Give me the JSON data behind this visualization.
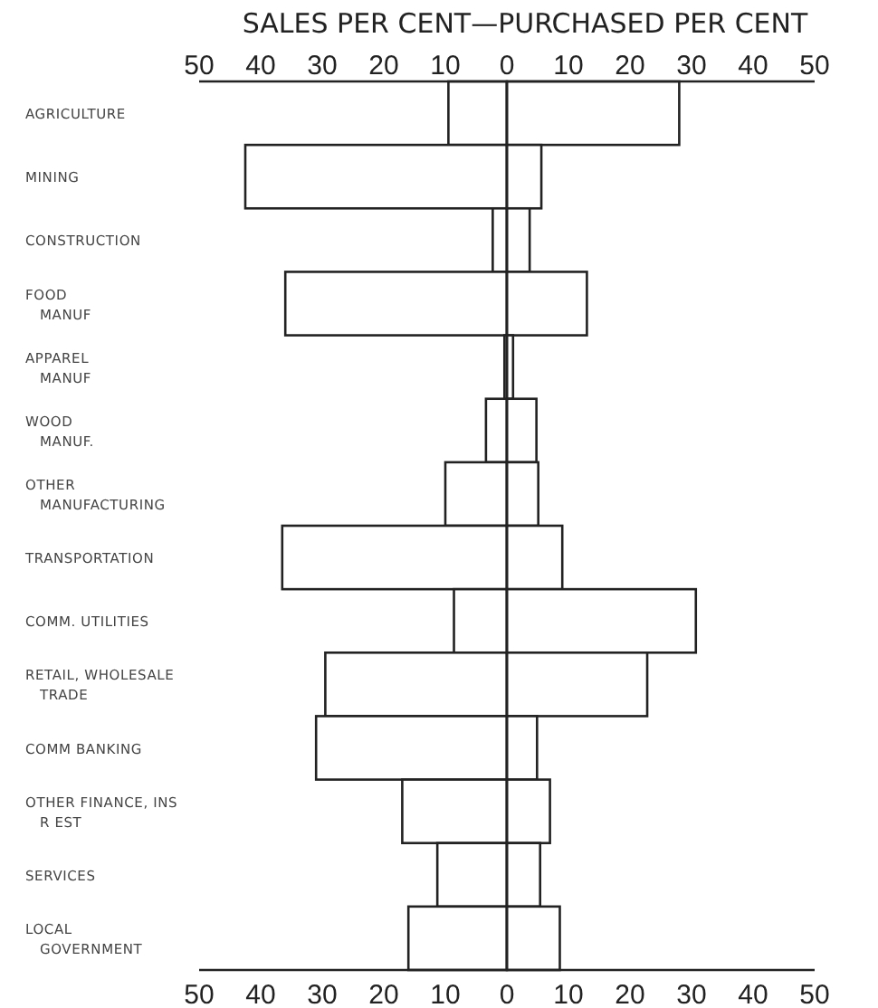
{
  "chart_data": {
    "type": "bar",
    "orientation": "horizontal",
    "stacked": true,
    "xlabel": "SALES PER CENT—PURCHASED PER CENT",
    "categories": [
      "AGRICULTURE",
      "MINING",
      "CONSTRUCTION",
      "FOOD\nMANUF",
      "APPAREL\nMANUF",
      "WOOD\nMANUF.",
      "OTHER\nMANUFACTURING",
      "TRANSPORTATION",
      "COMM. UTILITIES",
      "RETAIL, WHOLESALE\nTRADE",
      "COMM BANKING",
      "OTHER FINANCE, INS\nR EST",
      "SERVICES",
      "LOCAL\nGOVERNMENT"
    ],
    "series": [
      {
        "color": "#ffffff",
        "values": [
          -9.5,
          -42.5,
          -2.3,
          -36,
          -0.4,
          -3.4,
          -10,
          -36.5,
          -8.6,
          -29.5,
          -31,
          -17,
          -11.3,
          -16
        ]
      },
      {
        "color": "#ffffff",
        "values": [
          28,
          5.6,
          3.7,
          13,
          1,
          4.8,
          5.1,
          9,
          30.7,
          22.8,
          4.9,
          7,
          5.4,
          8.6
        ]
      }
    ],
    "xlim": [
      -50,
      50
    ],
    "xticks": [
      {
        "value": -50,
        "label": "50"
      },
      {
        "value": -40,
        "label": "40"
      },
      {
        "value": -30,
        "label": "30"
      },
      {
        "value": -20,
        "label": "20"
      },
      {
        "value": -10,
        "label": "10"
      },
      0,
      10,
      20,
      30,
      40,
      50
    ],
    "x2lim": [
      -50,
      50
    ],
    "x2ticks": [
      {
        "value": -50,
        "label": "50"
      },
      {
        "value": -40,
        "label": "40"
      },
      {
        "value": -30,
        "label": "30"
      },
      {
        "value": -20,
        "label": "20"
      },
      {
        "value": -10,
        "label": "10"
      },
      0,
      10,
      20,
      30,
      40,
      50
    ],
    "ref_lines": [
      {
        "axis": "x",
        "value": 0
      }
    ]
  }
}
